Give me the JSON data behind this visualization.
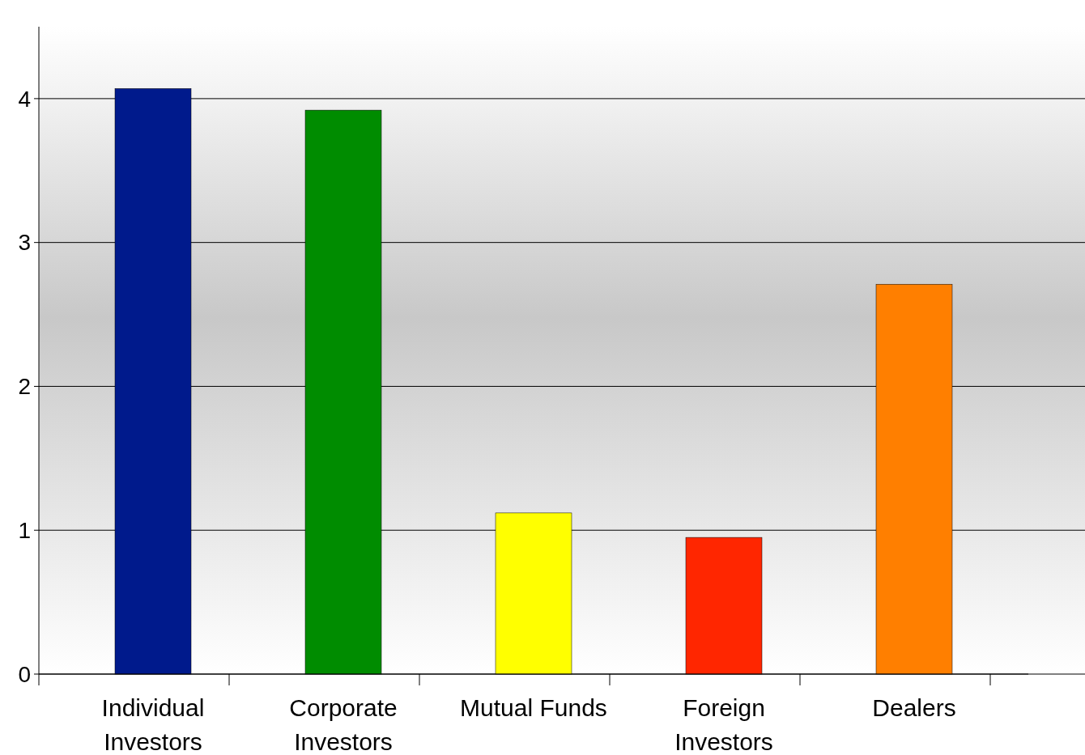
{
  "chart_data": {
    "type": "bar",
    "categories": [
      "Individual Investors",
      "Corporate Investors",
      "Mutual Funds",
      "Foreign Investors",
      "Dealers"
    ],
    "values": [
      4.07,
      3.92,
      1.12,
      0.95,
      2.71
    ],
    "colors": [
      "#001a8c",
      "#008c00",
      "#ffff00",
      "#ff2600",
      "#ff7f00"
    ],
    "ylim": [
      0,
      4.5
    ],
    "yticks": [
      0,
      1,
      2,
      3,
      4
    ],
    "grid": "y"
  }
}
